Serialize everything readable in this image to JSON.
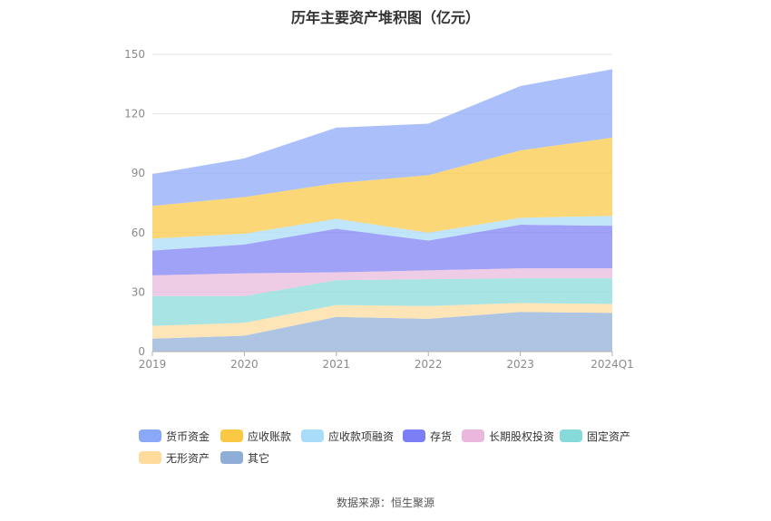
{
  "title": "历年主要资产堆积图（亿元）",
  "source": "数据来源：恒生聚源",
  "chart_data": {
    "type": "area",
    "stacked": true,
    "title": "历年主要资产堆积图（亿元）",
    "categories": [
      "2019",
      "2020",
      "2021",
      "2022",
      "2023",
      "2024Q1"
    ],
    "ylim": [
      0,
      150
    ],
    "yticks": [
      0,
      30,
      60,
      90,
      120,
      150
    ],
    "grid": true,
    "legend_position": "bottom",
    "series": [
      {
        "name": "其它",
        "color": "#8eaed8",
        "values": [
          6.5,
          8.0,
          17.5,
          16.5,
          20.0,
          19.5
        ]
      },
      {
        "name": "无形资产",
        "color": "#fddb9d",
        "values": [
          6.5,
          6.5,
          6.0,
          6.5,
          4.5,
          4.5
        ]
      },
      {
        "name": "固定资产",
        "color": "#86dada",
        "values": [
          15.0,
          13.5,
          12.5,
          13.5,
          12.5,
          13.0
        ]
      },
      {
        "name": "长期股权投资",
        "color": "#e9b8dc",
        "values": [
          10.5,
          11.5,
          4.0,
          4.5,
          5.0,
          5.0
        ]
      },
      {
        "name": "存货",
        "color": "#7b7ef5",
        "values": [
          12.5,
          14.5,
          22.0,
          15.0,
          22.0,
          21.5
        ]
      },
      {
        "name": "应收款项融资",
        "color": "#a9dcf8",
        "values": [
          6.0,
          5.5,
          5.0,
          4.0,
          3.5,
          5.0
        ]
      },
      {
        "name": "应收账款",
        "color": "#fbc843",
        "values": [
          16.5,
          18.5,
          18.0,
          29.0,
          34.0,
          39.5
        ]
      },
      {
        "name": "货币资金",
        "color": "#8aa8f8",
        "values": [
          16.0,
          19.5,
          28.0,
          26.0,
          32.5,
          34.5
        ]
      }
    ],
    "legend_order": [
      "货币资金",
      "应收账款",
      "应收款项融资",
      "存货",
      "长期股权投资",
      "固定资产",
      "无形资产",
      "其它"
    ]
  }
}
